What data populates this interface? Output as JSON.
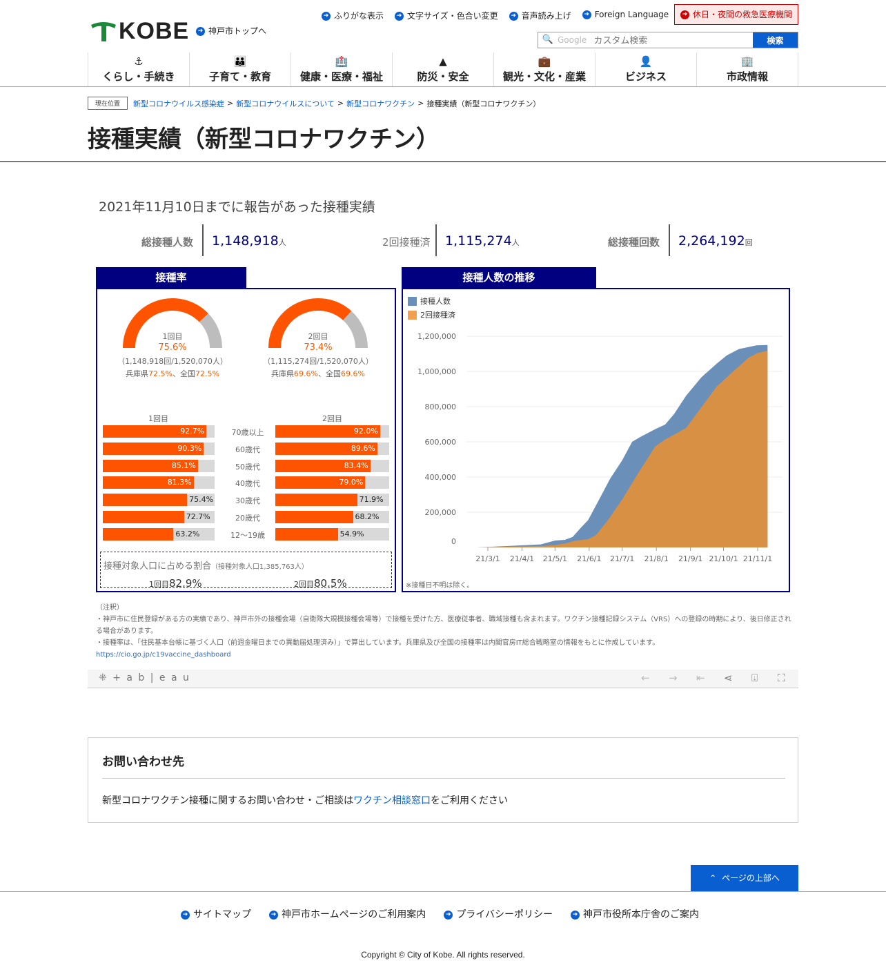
{
  "header": {
    "logo": "KOBE",
    "top_link": "神戸市トップへ",
    "links": [
      "ふりがな表示",
      "文字サイズ・色合い変更",
      "音声読み上げ",
      "Foreign Language"
    ],
    "emergency": "休日・夜間の救急医療機関",
    "search_placeholder": "カスタム検索",
    "search_brand": "Google",
    "search_button": "検索"
  },
  "nav": [
    {
      "label": "くらし・手続き",
      "icon": "anchor-icon",
      "glyph": "⚓"
    },
    {
      "label": "子育て・教育",
      "icon": "people-icon",
      "glyph": "👪"
    },
    {
      "label": "健康・医療・福祉",
      "icon": "hospital-icon",
      "glyph": "🏥"
    },
    {
      "label": "防災・安全",
      "icon": "warning-icon",
      "glyph": "▲"
    },
    {
      "label": "観光・文化・産業",
      "icon": "suitcase-icon",
      "glyph": "💼"
    },
    {
      "label": "ビジネス",
      "icon": "businessman-icon",
      "glyph": "👤"
    },
    {
      "label": "市政情報",
      "icon": "building-icon",
      "glyph": "🏢"
    }
  ],
  "breadcrumb": {
    "label": "現在位置",
    "items": [
      "新型コロナウイルス感染症",
      "新型コロナウイルスについて",
      "新型コロナワクチン"
    ],
    "current": "接種実績（新型コロナワクチン）"
  },
  "page_title": "接種実績（新型コロナワクチン）",
  "dashboard": {
    "report_title": "2021年11月10日までに報告があった接種実績",
    "kpis": [
      {
        "label": "総接種人数",
        "value": "1,148,918",
        "unit": "人"
      },
      {
        "label": "2回接種済",
        "value": "1,115,274",
        "unit": "人"
      },
      {
        "label": "総接種回数",
        "value": "2,264,192",
        "unit": "回"
      }
    ],
    "rate_tab": "接種率",
    "trend_tab": "接種人数の推移",
    "gauges": [
      {
        "label": "1回目",
        "rate": "75.6%",
        "value": 75.6,
        "detail": "（1,148,918回/1,520,070人）",
        "pref_label": "兵庫県",
        "pref": "72.5%",
        "sep": "、",
        "nat_label": "全国",
        "nat": "72.5%"
      },
      {
        "label": "2回目",
        "rate": "73.4%",
        "value": 73.4,
        "detail": "（1,115,274回/1,520,070人）",
        "pref_label": "兵庫県",
        "pref": "69.6%",
        "sep": "、",
        "nat_label": "全国",
        "nat": "69.6%"
      }
    ],
    "age_headers": [
      "1回目",
      "2回目"
    ],
    "ages": [
      {
        "age": "70歳以上",
        "d1": "92.7%",
        "v1": 92.7,
        "d2": "92.0%",
        "v2": 92.0
      },
      {
        "age": "60歳代",
        "d1": "90.3%",
        "v1": 90.3,
        "d2": "89.6%",
        "v2": 89.6
      },
      {
        "age": "50歳代",
        "d1": "85.1%",
        "v1": 85.1,
        "d2": "83.4%",
        "v2": 83.4
      },
      {
        "age": "40歳代",
        "d1": "81.3%",
        "v1": 81.3,
        "d2": "79.0%",
        "v2": 79.0
      },
      {
        "age": "30歳代",
        "d1": "75.4%",
        "v1": 75.4,
        "d2": "71.9%",
        "v2": 71.9
      },
      {
        "age": "20歳代",
        "d1": "72.7%",
        "v1": 72.7,
        "d2": "68.2%",
        "v2": 68.2
      },
      {
        "age": "12～19歳",
        "d1": "63.2%",
        "v1": 63.2,
        "d2": "54.9%",
        "v2": 54.9
      }
    ],
    "target": {
      "title": "接種対象人口に占める割合",
      "sub": "（接種対象人口1,385,763人）",
      "d1_label": "1回目",
      "d1": "82.9%",
      "d2_label": "2回目",
      "d2": "80.5%"
    },
    "chart_note": "※接種日不明は除く。",
    "colors": {
      "orange": "#fe5400",
      "gray": "#bdbdbd",
      "navy": "#000080",
      "blue": "#6a8fb9",
      "tan": "#d89044"
    }
  },
  "chart_data": {
    "type": "area",
    "xlabel": "",
    "ylabel": "",
    "ylim": [
      0,
      1200000
    ],
    "yticks": [
      0,
      200000,
      400000,
      600000,
      800000,
      1000000,
      1200000
    ],
    "ytick_labels": [
      "0",
      "200,000",
      "400,000",
      "600,000",
      "800,000",
      "1,000,000",
      "1,200,000"
    ],
    "xticks": [
      "2021-03-01",
      "2021-04-01",
      "2021-05-01",
      "2021-06-01",
      "2021-07-01",
      "2021-08-01",
      "2021-09-01",
      "2021-10-01",
      "2021-11-01"
    ],
    "xtick_labels": [
      "21/3/1",
      "21/4/1",
      "21/5/1",
      "21/6/1",
      "21/7/1",
      "21/8/1",
      "21/9/1",
      "21/10/1",
      "21/11/1"
    ],
    "grid": true,
    "legend": "top-left",
    "series": [
      {
        "name": "接種人数",
        "color": "#6a8fb9",
        "points": [
          [
            "2021-02-19",
            0
          ],
          [
            "2021-04-18",
            17000
          ],
          [
            "2021-05-01",
            39000
          ],
          [
            "2021-05-10",
            43000
          ],
          [
            "2021-05-17",
            60000
          ],
          [
            "2021-05-24",
            109000
          ],
          [
            "2021-05-31",
            155000
          ],
          [
            "2021-06-09",
            260000
          ],
          [
            "2021-06-20",
            390000
          ],
          [
            "2021-07-01",
            495000
          ],
          [
            "2021-07-10",
            600000
          ],
          [
            "2021-07-17",
            626000
          ],
          [
            "2021-07-31",
            672000
          ],
          [
            "2021-08-09",
            698000
          ],
          [
            "2021-08-17",
            757000
          ],
          [
            "2021-08-28",
            862000
          ],
          [
            "2021-09-11",
            967000
          ],
          [
            "2021-09-25",
            1045000
          ],
          [
            "2021-10-04",
            1091000
          ],
          [
            "2021-10-15",
            1127000
          ],
          [
            "2021-10-31",
            1148000
          ],
          [
            "2021-11-10",
            1150000
          ]
        ]
      },
      {
        "name": "2回接種済",
        "color": "#d89044",
        "points": [
          [
            "2021-02-19",
            0
          ],
          [
            "2021-04-18",
            8000
          ],
          [
            "2021-05-01",
            13000
          ],
          [
            "2021-05-11",
            24000
          ],
          [
            "2021-05-20",
            39000
          ],
          [
            "2021-05-31",
            47000
          ],
          [
            "2021-06-07",
            69000
          ],
          [
            "2021-06-18",
            155000
          ],
          [
            "2021-07-01",
            273000
          ],
          [
            "2021-07-15",
            417000
          ],
          [
            "2021-07-31",
            574000
          ],
          [
            "2021-08-09",
            613000
          ],
          [
            "2021-08-17",
            640000
          ],
          [
            "2021-08-28",
            679000
          ],
          [
            "2021-09-11",
            797000
          ],
          [
            "2021-09-25",
            915000
          ],
          [
            "2021-10-11",
            1007000
          ],
          [
            "2021-10-24",
            1079000
          ],
          [
            "2021-11-01",
            1105000
          ],
          [
            "2021-11-10",
            1118000
          ]
        ]
      }
    ]
  },
  "notes": {
    "title": "（注釈）",
    "lines": [
      "・神戸市に住民登録がある方の実績であり、神戸市外の接種会場（自衛隊大規模接種会場等）で接種を受けた方、医療従事者、職域接種も含まれます。ワクチン接種記録システム（VRS）への登録の時期により、後日修正される場合があります。",
      "・接種率は、「住民基本台帳に基づく人口（前週金曜日までの異動届処理済み）」で算出しています。兵庫県及び全国の接種率は内閣官房IT総合戦略室の情報をもとに作成しています。"
    ],
    "link": "https://cio.go.jp/c19vaccine_dashboard"
  },
  "tableau": {
    "logo": "+ a b | e a u"
  },
  "contact": {
    "title": "お問い合わせ先",
    "text_before": "新型コロナワクチン接種に関するお問い合わせ・ご相談は",
    "link": "ワクチン相談窓口",
    "text_after": "をご利用ください"
  },
  "back_to_top": "ページの上部へ",
  "footer": {
    "links": [
      "サイトマップ",
      "神戸市ホームページのご利用案内",
      "プライバシーポリシー",
      "神戸市役所本庁舎のご案内"
    ],
    "copyright": "Copyright © City of Kobe. All rights reserved."
  }
}
